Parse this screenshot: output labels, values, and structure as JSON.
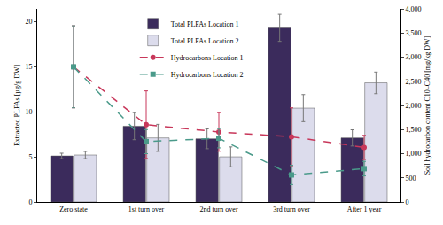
{
  "chart_data": {
    "type": "bar",
    "categories": [
      "Zero state",
      "1st turn over",
      "2nd turn over",
      "3rd turn over",
      "After 1 year"
    ],
    "y_label": "Extracted PLFAs [µg/g DW]",
    "y2_label": "Soil hydrocarbon content C10–C40 [mg/kg DW]",
    "ylim": [
      0,
      21.4
    ],
    "yticks": [
      0,
      5,
      10,
      15,
      20
    ],
    "y2lim": [
      0,
      4000
    ],
    "y2ticks": [
      {
        "value": 0,
        "label": "0"
      },
      {
        "value": 500,
        "label": "500"
      },
      {
        "value": 1000,
        "label": "1,000"
      },
      {
        "value": 1500,
        "label": "1,500"
      },
      {
        "value": 2000,
        "label": "2,000"
      },
      {
        "value": 2500,
        "label": "2,500"
      },
      {
        "value": 3000,
        "label": "3,000"
      },
      {
        "value": 3500,
        "label": "3,500"
      },
      {
        "value": 4000,
        "label": "4,000"
      }
    ],
    "grid": false,
    "legend": "top",
    "series": [
      {
        "name": "Total PLFAs Location 1",
        "type": "bar",
        "color": "#3b2b5c",
        "values": [
          5.1,
          8.4,
          7.0,
          19.3,
          7.1
        ],
        "error": [
          0.3,
          1.5,
          1.1,
          1.5,
          0.9
        ]
      },
      {
        "name": "Total PLFAs Location 2",
        "type": "bar",
        "color": "#dcdcec",
        "values": [
          5.2,
          7.1,
          5.0,
          10.4,
          13.2
        ],
        "error": [
          0.4,
          1.5,
          1.1,
          1.5,
          1.2
        ]
      },
      {
        "name": "Hydrocarbons Location 1",
        "type": "line",
        "axis": "y2",
        "color": "#c8375a",
        "marker": "circle",
        "line_style": "dash",
        "values": [
          2800,
          1600,
          1450,
          1350,
          1130
        ],
        "error": [
          850,
          700,
          400,
          600,
          250
        ]
      },
      {
        "name": "Hydrocarbons Location 2",
        "type": "line",
        "axis": "y2",
        "color": "#4a9a8a",
        "marker": "square",
        "line_style": "dash",
        "values": [
          2800,
          1250,
          1320,
          560,
          690
        ],
        "error": [
          850,
          250,
          200,
          200,
          150
        ]
      }
    ]
  }
}
